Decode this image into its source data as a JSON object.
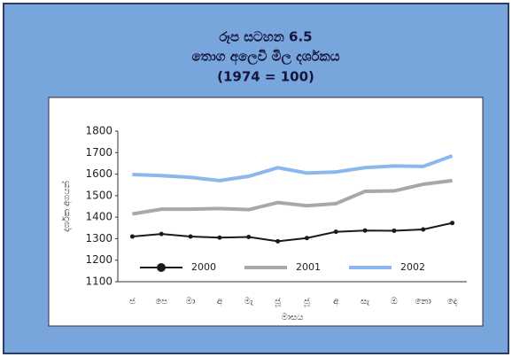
{
  "chart_data": {
    "type": "line",
    "title": "රූප සටහන 6.5",
    "subtitle": "තොග අලෙවි මිල දර්ශකය",
    "note": "(1974 = 100)",
    "y_label": "දර්ශක අගයන්",
    "x_label": "මාසය",
    "categories": [
      "ජ",
      "පෙ",
      "මා",
      "අ",
      "මැ",
      "ජූ",
      "ජූ",
      "අ",
      "සැ",
      "ඔ",
      "නො",
      "දෙ"
    ],
    "series": [
      {
        "name": "2000",
        "color": "#1a1a1a",
        "markers": true,
        "values": [
          1310,
          1322,
          1310,
          1305,
          1308,
          1288,
          1303,
          1332,
          1338,
          1337,
          1343,
          1373
        ]
      },
      {
        "name": "2001",
        "color": "#a8a8a8",
        "markers": false,
        "values": [
          1415,
          1437,
          1437,
          1440,
          1435,
          1468,
          1453,
          1463,
          1520,
          1522,
          1553,
          1570
        ]
      },
      {
        "name": "2002",
        "color": "#8ab8ec",
        "markers": false,
        "values": [
          1598,
          1593,
          1585,
          1570,
          1590,
          1630,
          1605,
          1610,
          1630,
          1638,
          1636,
          1685
        ]
      }
    ],
    "ylim": [
      1100,
      1800
    ],
    "yticks": [
      1100,
      1200,
      1300,
      1400,
      1500,
      1600,
      1700,
      1800
    ],
    "grid": false,
    "legend": "bottom"
  }
}
